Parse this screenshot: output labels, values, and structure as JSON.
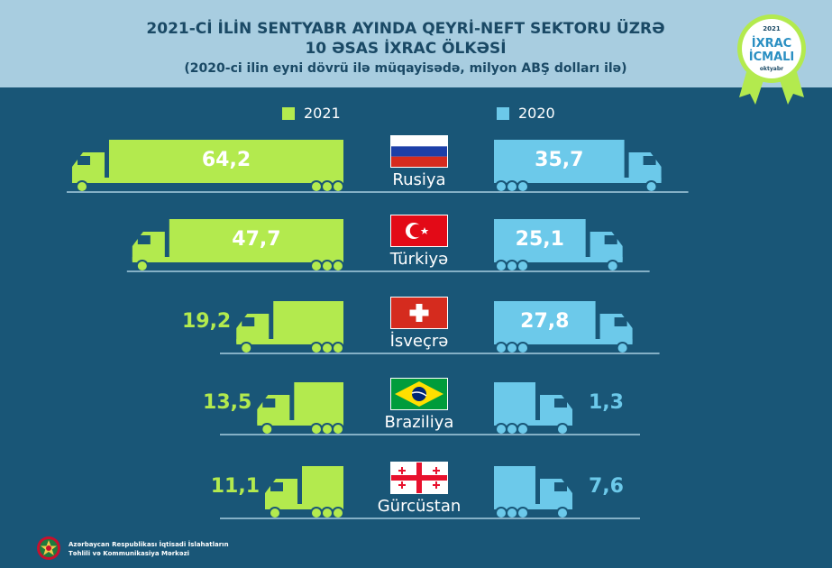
{
  "title": {
    "line1": "2021-Cİ İLİN SENTYABR AYINDA QEYRİ-NEFT SEKTORU ÜZRƏ",
    "line2": "10 ƏSAS İXRAC ÖLKƏSİ",
    "subtitle": "(2020-ci ilin eyni dövrü ilə müqayisədə, milyon ABŞ dolları ilə)"
  },
  "badge": {
    "year": "2021",
    "line1": "İXRAC",
    "line2": "İCMALI",
    "month": "oktyabr"
  },
  "footer": {
    "line1": "Azərbaycan Respublikası İqtisadi İslahatların",
    "line2": "Təhlili və Kommunikasiya Mərkəzi"
  },
  "colors": {
    "green": "#b3ea4e",
    "blue": "#6cc9ea",
    "background": "#195677",
    "header": "#a8cde0"
  },
  "chart_data": {
    "type": "bar",
    "categories": [
      "Rusiya",
      "Türkiyə",
      "İsveçrə",
      "Braziliya",
      "Gürcüstan"
    ],
    "series": [
      {
        "name": "2021",
        "values": [
          64.2,
          47.7,
          19.2,
          13.5,
          11.1
        ],
        "labels": [
          "64,2",
          "47,7",
          "19,2",
          "13,5",
          "11,1"
        ]
      },
      {
        "name": "2020",
        "values": [
          35.7,
          25.1,
          27.8,
          1.3,
          7.6
        ],
        "labels": [
          "35,7",
          "25,1",
          "27,8",
          "1,3",
          "7,6"
        ]
      }
    ],
    "legend": "top",
    "flags": [
      "russia-flag",
      "turkey-flag",
      "switzerland-flag",
      "brazil-flag",
      "georgia-flag"
    ]
  }
}
